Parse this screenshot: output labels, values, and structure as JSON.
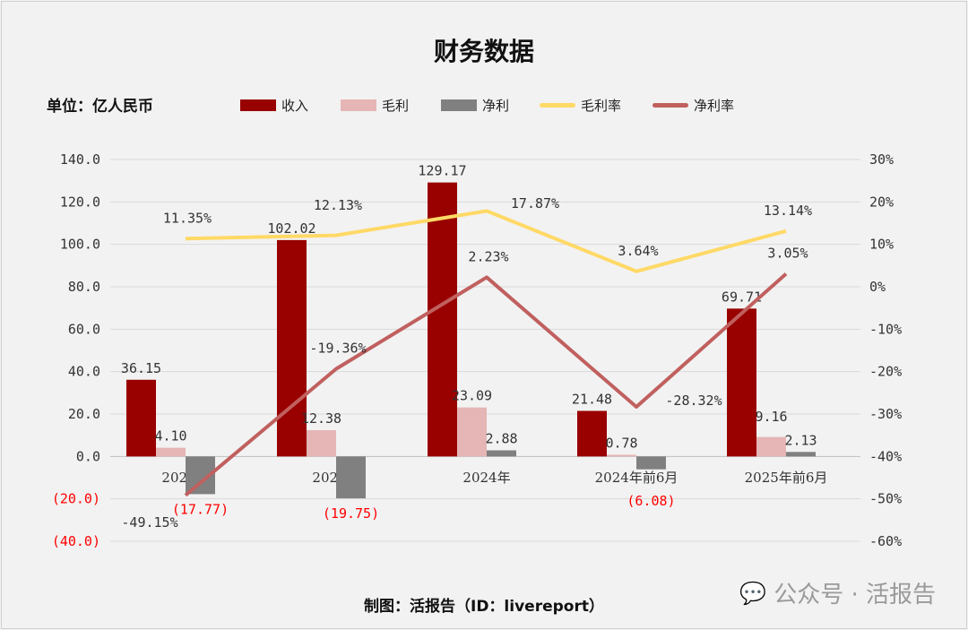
{
  "chart_data": {
    "type": "bar",
    "title": "财务数据",
    "unit": "单位：亿人民币",
    "categories": [
      "2022年",
      "2023年",
      "2024年",
      "2024年前6月",
      "2025年前6月"
    ],
    "left_axis": {
      "ylim": [
        -40,
        140
      ],
      "ticks": [
        "(40.0)",
        "(20.0)",
        "0.0",
        "20.0",
        "40.0",
        "60.0",
        "80.0",
        "100.0",
        "120.0",
        "140.0"
      ],
      "tick_values": [
        -40,
        -20,
        0,
        20,
        40,
        60,
        80,
        100,
        120,
        140
      ]
    },
    "right_axis": {
      "ylim": [
        -60,
        30
      ],
      "ticks": [
        "-60%",
        "-50%",
        "-40%",
        "-30%",
        "-20%",
        "-10%",
        "0%",
        "10%",
        "20%",
        "30%"
      ],
      "tick_values": [
        -60,
        -50,
        -40,
        -30,
        -20,
        -10,
        0,
        10,
        20,
        30
      ]
    },
    "grid": true,
    "legend_placement": "top",
    "series": [
      {
        "name": "收入",
        "kind": "bar",
        "axis": "left",
        "color": "#990000",
        "values": [
          36.15,
          102.02,
          129.17,
          21.48,
          69.71
        ],
        "labels": [
          "36.15",
          "102.02",
          "129.17",
          "21.48",
          "69.71"
        ]
      },
      {
        "name": "毛利",
        "kind": "bar",
        "axis": "left",
        "color": "#e6b5b5",
        "values": [
          4.1,
          12.38,
          23.09,
          0.78,
          9.16
        ],
        "labels": [
          "4.10",
          "12.38",
          "23.09",
          "0.78",
          "9.16"
        ]
      },
      {
        "name": "净利",
        "kind": "bar",
        "axis": "left",
        "color": "#808080",
        "values": [
          -17.77,
          -19.75,
          2.88,
          -6.08,
          2.13
        ],
        "labels": [
          "(17.77)",
          "(19.75)",
          "2.88",
          "(6.08)",
          "2.13"
        ]
      },
      {
        "name": "毛利率",
        "kind": "line",
        "axis": "right",
        "color": "#ffd966",
        "values": [
          11.35,
          12.13,
          17.87,
          3.64,
          13.14
        ],
        "labels": [
          "11.35%",
          "12.13%",
          "17.87%",
          "3.64%",
          "13.14%"
        ]
      },
      {
        "name": "净利率",
        "kind": "line",
        "axis": "right",
        "color": "#c0605f",
        "values": [
          -49.15,
          -19.36,
          2.23,
          -28.32,
          3.05
        ],
        "labels": [
          "-49.15%",
          "-19.36%",
          "2.23%",
          "-28.32%",
          "3.05%"
        ]
      }
    ],
    "negative_color": "#ff0000"
  },
  "footer": "制图：活报告（ID：livereport）",
  "watermark": "公众号 · 活报告"
}
